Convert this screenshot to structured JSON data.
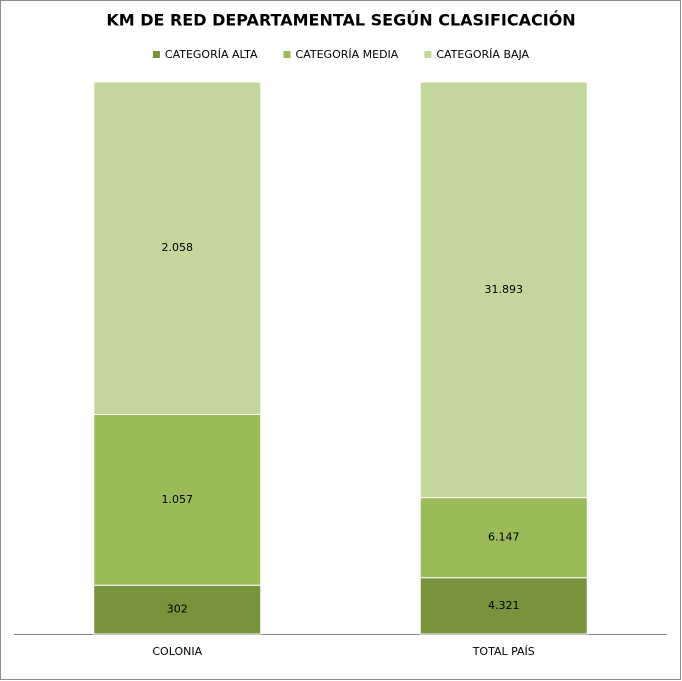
{
  "chart_data": {
    "type": "bar",
    "stacking": "percent",
    "title": "KM DE RED DEPARTAMENTAL SEGÚN CLASIFICACIÓN",
    "categories": [
      "COLONIA",
      "TOTAL PAÍS"
    ],
    "legend": "top",
    "series": [
      {
        "name": "CATEGORÍA ALTA",
        "color": "#77933c",
        "values": [
          302,
          4321
        ],
        "value_labels": [
          "302",
          "4.321"
        ]
      },
      {
        "name": "CATEGORÍA MEDIA",
        "color": "#9bbb59",
        "values": [
          1057,
          6147
        ],
        "value_labels": [
          "1.057",
          "6.147"
        ]
      },
      {
        "name": "CATEGORÍA BAJA",
        "color": "#c3d69b",
        "values": [
          2058,
          31893
        ],
        "value_labels": [
          "2.058",
          "31.893"
        ]
      }
    ]
  }
}
